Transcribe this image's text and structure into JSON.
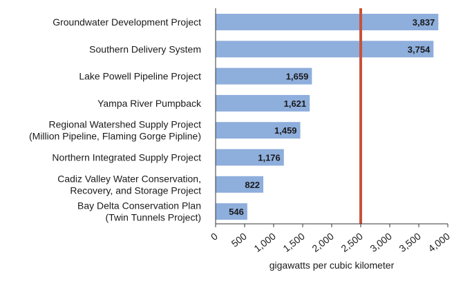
{
  "chart_data": {
    "type": "bar",
    "orientation": "horizontal",
    "title": "",
    "xlabel": "gigawatts per cubic kilometer",
    "ylabel": "",
    "xlim": [
      0,
      4000
    ],
    "xticks": [
      0,
      500,
      1000,
      1500,
      2000,
      2500,
      3000,
      3500,
      4000
    ],
    "xtick_labels": [
      "0",
      "500",
      "1,000",
      "1,500",
      "2,000",
      "2,500",
      "3,000",
      "3,500",
      "4,000"
    ],
    "categories": [
      [
        "Groundwater Development Project"
      ],
      [
        "Southern Delivery System"
      ],
      [
        "Lake Powell Pipeline Project"
      ],
      [
        "Yampa River Pumpback"
      ],
      [
        "Regional Watershed Supply Project",
        "(Million Pipeline, Flaming Gorge Pipline)"
      ],
      [
        "Northern Integrated Supply Project"
      ],
      [
        "Cadiz Valley Water Conservation,",
        "Recovery, and Storage Project"
      ],
      [
        "Bay Delta Conservation Plan",
        "(Twin Tunnels Project)"
      ]
    ],
    "values": [
      3837,
      3754,
      1659,
      1621,
      1459,
      1176,
      822,
      546
    ],
    "value_labels": [
      "3,837",
      "3,754",
      "1,659",
      "1,621",
      "1,459",
      "1,176",
      "822",
      "546"
    ],
    "reference_line": {
      "value": 2500
    },
    "grid": false,
    "colors": {
      "bar": "#8eaedc",
      "reference_line": "#c8523a",
      "axis": "#333333"
    }
  }
}
